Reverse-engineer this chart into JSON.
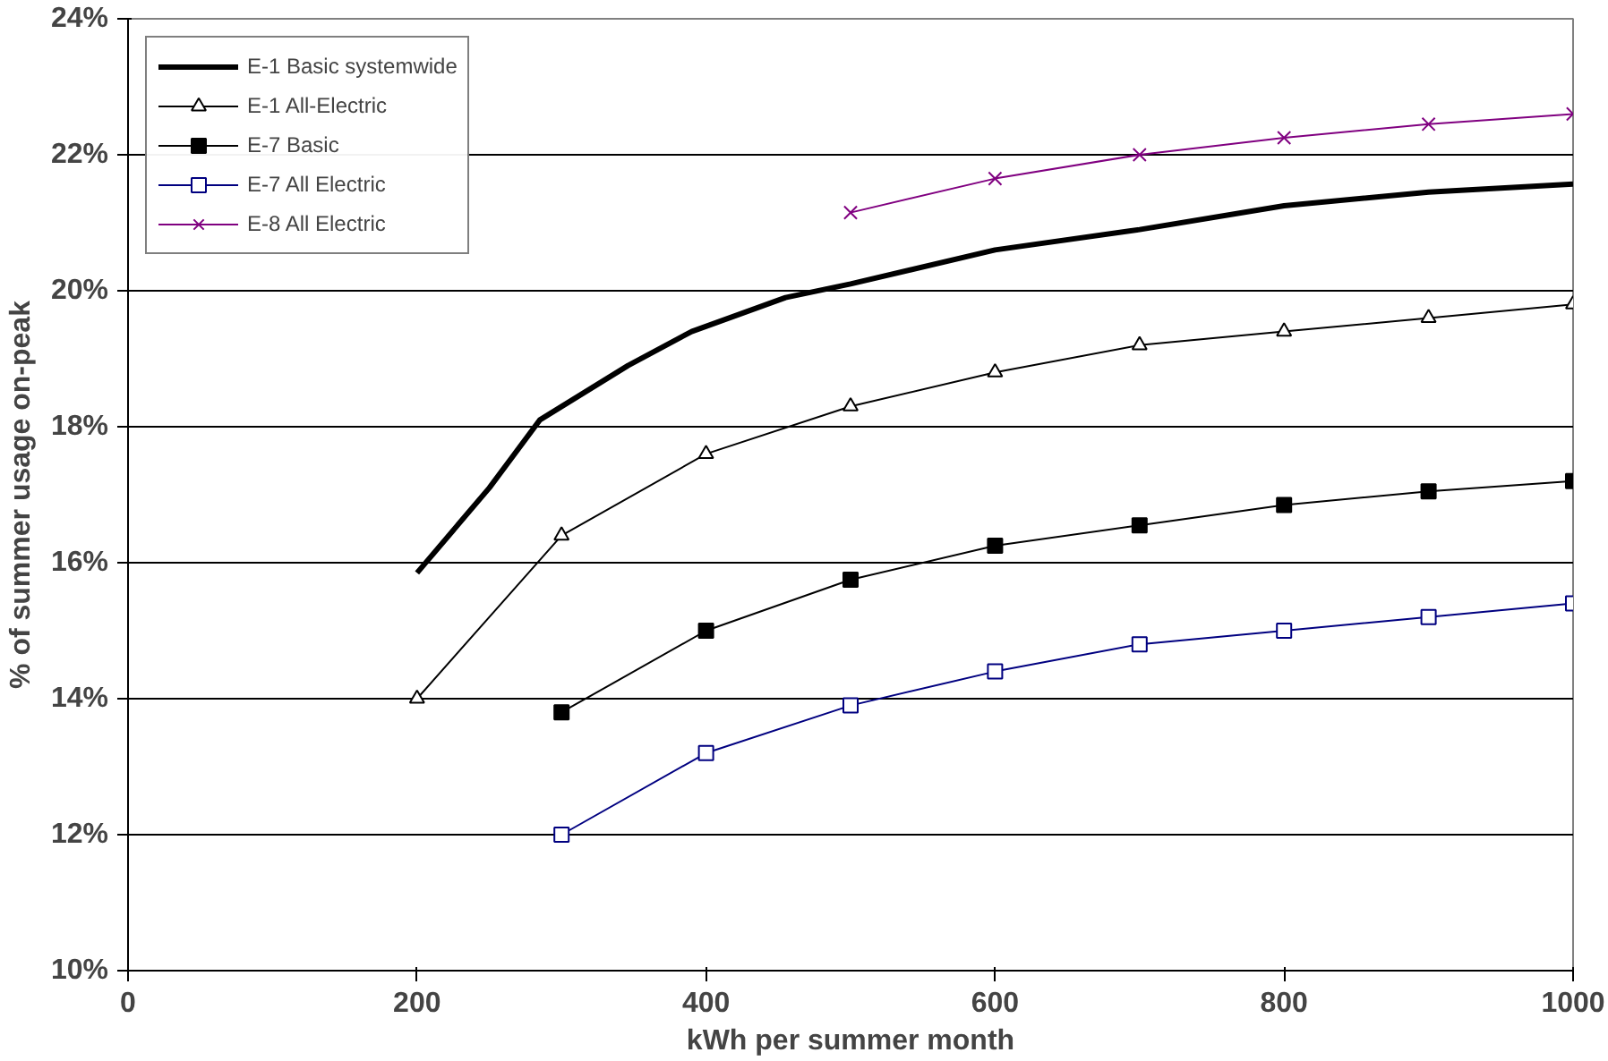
{
  "chart_data": {
    "type": "line",
    "xlabel": "kWh per summer month",
    "ylabel": "% of summer usage on-peak",
    "xlim": [
      0,
      1000
    ],
    "xticks": [
      0,
      200,
      400,
      600,
      800,
      1000
    ],
    "ylim": [
      10,
      24
    ],
    "yticks": [
      {
        "value": 10,
        "label": "10%"
      },
      {
        "value": 12,
        "label": "12%"
      },
      {
        "value": 14,
        "label": "14%"
      },
      {
        "value": 16,
        "label": "16%"
      },
      {
        "value": 18,
        "label": "18%"
      },
      {
        "value": 20,
        "label": "20%"
      },
      {
        "value": 22,
        "label": "22%"
      },
      {
        "value": 24,
        "label": "24%"
      }
    ],
    "grid": "y",
    "legend": "top left",
    "series": [
      {
        "name": "E-1 Basic systemwide",
        "color": "#000000",
        "marker": "none",
        "x": [
          200,
          250,
          285,
          346,
          390,
          455,
          500,
          600,
          700,
          800,
          900,
          1000
        ],
        "values": [
          15.85,
          17.1,
          18.1,
          18.9,
          19.4,
          19.9,
          20.1,
          20.6,
          20.9,
          21.25,
          21.45,
          21.57
        ]
      },
      {
        "name": "E-1 All-Electric",
        "color": "#000000",
        "marker": "triangle",
        "x": [
          200,
          300,
          400,
          500,
          600,
          700,
          800,
          900,
          1000
        ],
        "values": [
          14.0,
          16.4,
          17.6,
          18.3,
          18.8,
          19.2,
          19.4,
          19.6,
          19.8
        ]
      },
      {
        "name": "E-7 Basic",
        "color": "#000000",
        "marker": "square",
        "x": [
          300,
          400,
          500,
          600,
          700,
          800,
          900,
          1000
        ],
        "values": [
          13.8,
          15.0,
          15.75,
          16.25,
          16.55,
          16.85,
          17.05,
          17.2
        ]
      },
      {
        "name": "E-7 All Electric",
        "color": "#000080",
        "marker": "square",
        "x": [
          300,
          400,
          500,
          600,
          700,
          800,
          900,
          1000
        ],
        "values": [
          12.0,
          13.2,
          13.9,
          14.4,
          14.8,
          15.0,
          15.2,
          15.4
        ]
      },
      {
        "name": "E-8 All Electric",
        "color": "#800080",
        "marker": "cross",
        "x": [
          500,
          600,
          700,
          800,
          900,
          1000
        ],
        "values": [
          21.15,
          21.65,
          22.0,
          22.25,
          22.45,
          22.6
        ]
      }
    ]
  }
}
